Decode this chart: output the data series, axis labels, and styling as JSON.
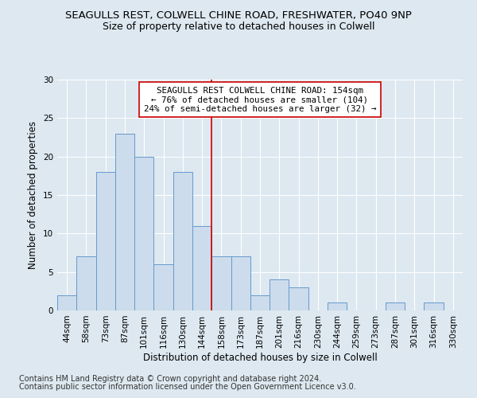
{
  "title1": "SEAGULLS REST, COLWELL CHINE ROAD, FRESHWATER, PO40 9NP",
  "title2": "Size of property relative to detached houses in Colwell",
  "xlabel": "Distribution of detached houses by size in Colwell",
  "ylabel": "Number of detached properties",
  "categories": [
    "44sqm",
    "58sqm",
    "73sqm",
    "87sqm",
    "101sqm",
    "116sqm",
    "130sqm",
    "144sqm",
    "158sqm",
    "173sqm",
    "187sqm",
    "201sqm",
    "216sqm",
    "230sqm",
    "244sqm",
    "259sqm",
    "273sqm",
    "287sqm",
    "301sqm",
    "316sqm",
    "330sqm"
  ],
  "values": [
    2,
    7,
    18,
    23,
    20,
    6,
    18,
    11,
    7,
    7,
    2,
    4,
    3,
    0,
    1,
    0,
    0,
    1,
    0,
    1,
    0
  ],
  "bar_color": "#ccdcec",
  "bar_edge_color": "#6699cc",
  "vline_x_index": 7.5,
  "vline_color": "#cc0000",
  "annotation_text": "SEAGULLS REST COLWELL CHINE ROAD: 154sqm\n← 76% of detached houses are smaller (104)\n24% of semi-detached houses are larger (32) →",
  "annotation_box_edge": "#cc0000",
  "annotation_box_fill": "#ffffff",
  "ylim": [
    0,
    30
  ],
  "yticks": [
    0,
    5,
    10,
    15,
    20,
    25,
    30
  ],
  "footer1": "Contains HM Land Registry data © Crown copyright and database right 2024.",
  "footer2": "Contains public sector information licensed under the Open Government Licence v3.0.",
  "bg_color": "#dde8f0",
  "title1_fontsize": 9.5,
  "title2_fontsize": 9,
  "axis_label_fontsize": 8.5,
  "tick_fontsize": 7.5,
  "annotation_fontsize": 7.8,
  "footer_fontsize": 7
}
